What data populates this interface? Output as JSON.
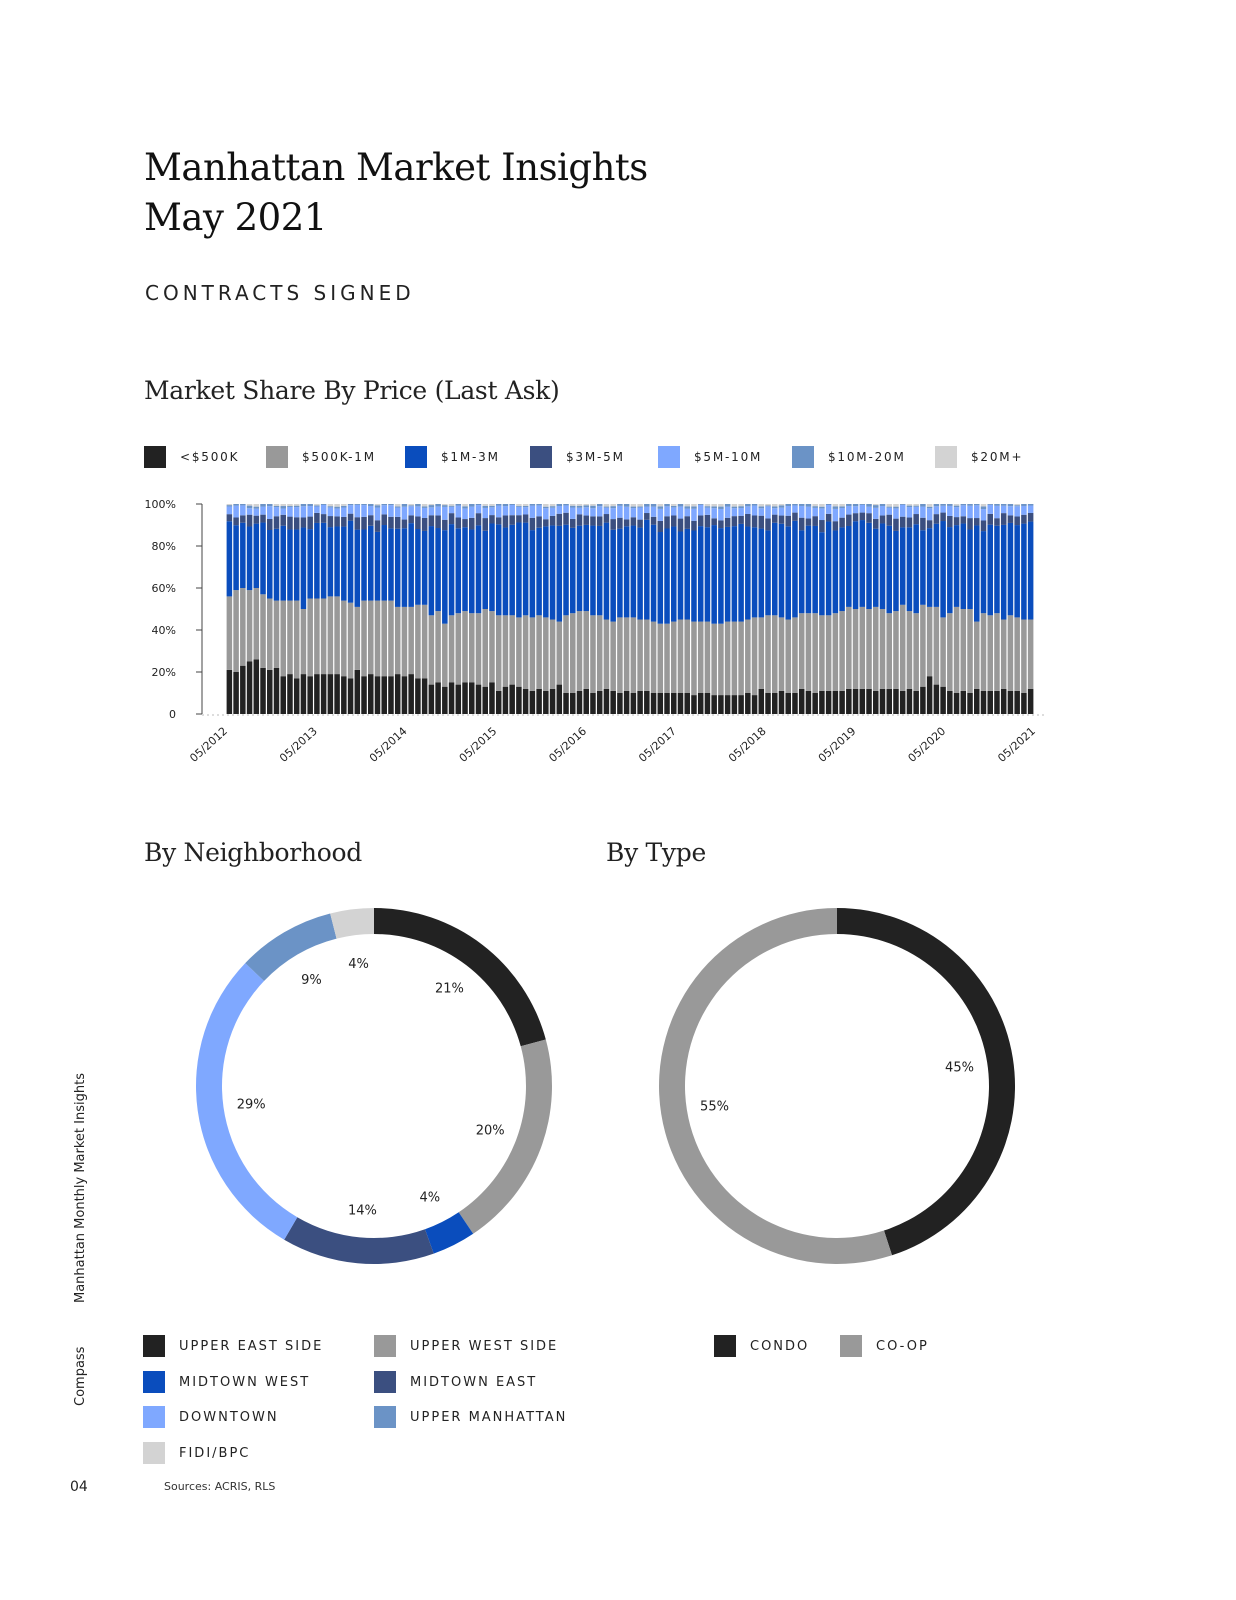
{
  "header": {
    "title_line1": "Manhattan Market Insights",
    "title_line2": "May 2021",
    "section": "CONTRACTS SIGNED"
  },
  "price_chart": {
    "title": "Market Share By Price (Last Ask)",
    "legend": [
      {
        "label": "<$500K",
        "color": "#222222"
      },
      {
        "label": "$500K-1M",
        "color": "#999999"
      },
      {
        "label": "$1M-3M",
        "color": "#0a4dbd"
      },
      {
        "label": "$3M-5M",
        "color": "#3b4f80"
      },
      {
        "label": "$5M-10M",
        "color": "#7fa8ff"
      },
      {
        "label": "$10M-20M",
        "color": "#6b93c6"
      },
      {
        "label": "$20M+",
        "color": "#d3d3d3"
      }
    ]
  },
  "neighborhood_chart": {
    "title": "By Neighborhood",
    "legend": [
      {
        "label": "UPPER EAST SIDE",
        "color": "#222222"
      },
      {
        "label": "UPPER WEST SIDE",
        "color": "#999999"
      },
      {
        "label": "MIDTOWN WEST",
        "color": "#0a4dbd"
      },
      {
        "label": "MIDTOWN EAST",
        "color": "#3b4f80"
      },
      {
        "label": "DOWNTOWN",
        "color": "#7fa8ff"
      },
      {
        "label": "UPPER MANHATTAN",
        "color": "#6b93c6"
      },
      {
        "label": "FIDI/BPC",
        "color": "#d3d3d3"
      }
    ]
  },
  "type_chart": {
    "title": "By Type",
    "legend": [
      {
        "label": "CONDO",
        "color": "#222222"
      },
      {
        "label": "CO-OP",
        "color": "#999999"
      }
    ]
  },
  "chart_data": [
    {
      "type": "bar",
      "stacked": true,
      "title": "Market Share By Price (Last Ask)",
      "xlabel": "",
      "ylabel": "",
      "ylim": [
        0,
        100
      ],
      "yticks": [
        "0",
        "20%",
        "40%",
        "60%",
        "80%",
        "100%"
      ],
      "x_tick_labels": [
        "05/2012",
        "05/2013",
        "05/2014",
        "05/2015",
        "05/2016",
        "05/2017",
        "05/2018",
        "05/2019",
        "05/2020",
        "05/2021"
      ],
      "series_names": [
        "<$500K",
        "$500K-1M",
        "$1M-3M",
        "$3M-5M",
        "$5M-10M",
        "$10M-20M",
        "$20M+"
      ],
      "series_colors": [
        "#222222",
        "#999999",
        "#0a4dbd",
        "#3b4f80",
        "#7fa8ff",
        "#6b93c6",
        "#d3d3d3"
      ],
      "under500_values": [
        21,
        20,
        23,
        25,
        26,
        22,
        21,
        22,
        18,
        19,
        17,
        19,
        18,
        19,
        19,
        19,
        19,
        18,
        17,
        21,
        18,
        19,
        18,
        18,
        18,
        19,
        18,
        19,
        17,
        17,
        14,
        15,
        13,
        15,
        14,
        15,
        15,
        14,
        13,
        15,
        11,
        13,
        14,
        13,
        12,
        11,
        12,
        11,
        12,
        14,
        10,
        10,
        11,
        12,
        10,
        11,
        12,
        11,
        10,
        11,
        10,
        11,
        11,
        10,
        10,
        10,
        10,
        10,
        10,
        9,
        10,
        10,
        9,
        9,
        9,
        9,
        9,
        10,
        9,
        12,
        10,
        10,
        11,
        10,
        10,
        12,
        11,
        10,
        11,
        11,
        11,
        11,
        12,
        12,
        12,
        12,
        11,
        12,
        12,
        12,
        11,
        12,
        11,
        13,
        18,
        14,
        13,
        11,
        10,
        11,
        10,
        12,
        11,
        11,
        11,
        12,
        11,
        11,
        10,
        12
      ],
      "under1m_cumulative": [
        56,
        59,
        60,
        59,
        60,
        57,
        55,
        54,
        54,
        54,
        54,
        50,
        55,
        55,
        55,
        56,
        56,
        54,
        53,
        51,
        54,
        54,
        54,
        54,
        54,
        51,
        51,
        51,
        52,
        52,
        47,
        49,
        43,
        47,
        48,
        49,
        48,
        48,
        50,
        49,
        47,
        47,
        47,
        46,
        47,
        46,
        47,
        46,
        45,
        44,
        47,
        48,
        49,
        49,
        47,
        47,
        45,
        44,
        46,
        46,
        46,
        45,
        45,
        44,
        43,
        43,
        44,
        45,
        45,
        44,
        44,
        44,
        43,
        43,
        44,
        44,
        44,
        45,
        46,
        46,
        47,
        47,
        46,
        45,
        46,
        48,
        48,
        48,
        47,
        47,
        48,
        49,
        51,
        50,
        51,
        50,
        51,
        50,
        48,
        49,
        52,
        49,
        48,
        52,
        51,
        51,
        46,
        48,
        51,
        50,
        50,
        44,
        48,
        47,
        48,
        45,
        47,
        46,
        45,
        45
      ]
    },
    {
      "type": "pie",
      "donut": true,
      "title": "By Neighborhood",
      "labels": [
        "UPPER EAST SIDE",
        "UPPER WEST SIDE",
        "MIDTOWN WEST",
        "MIDTOWN EAST",
        "DOWNTOWN",
        "UPPER MANHATTAN",
        "FIDI/BPC"
      ],
      "values": [
        21,
        20,
        4,
        14,
        29,
        9,
        4
      ],
      "value_labels": [
        "21%",
        "20%",
        "4%",
        "14%",
        "29%",
        "9%",
        "4%"
      ],
      "colors": [
        "#222222",
        "#999999",
        "#0a4dbd",
        "#3b4f80",
        "#7fa8ff",
        "#6b93c6",
        "#d3d3d3"
      ]
    },
    {
      "type": "pie",
      "donut": true,
      "title": "By Type",
      "labels": [
        "CONDO",
        "CO-OP"
      ],
      "values": [
        45,
        55
      ],
      "value_labels": [
        "45%",
        "55%"
      ],
      "colors": [
        "#222222",
        "#999999"
      ]
    }
  ],
  "sidebar": {
    "publication": "Manhattan Monthly Market Insights",
    "brand": "Compass"
  },
  "footer": {
    "page_number": "04",
    "sources": "Sources: ACRIS, RLS"
  }
}
